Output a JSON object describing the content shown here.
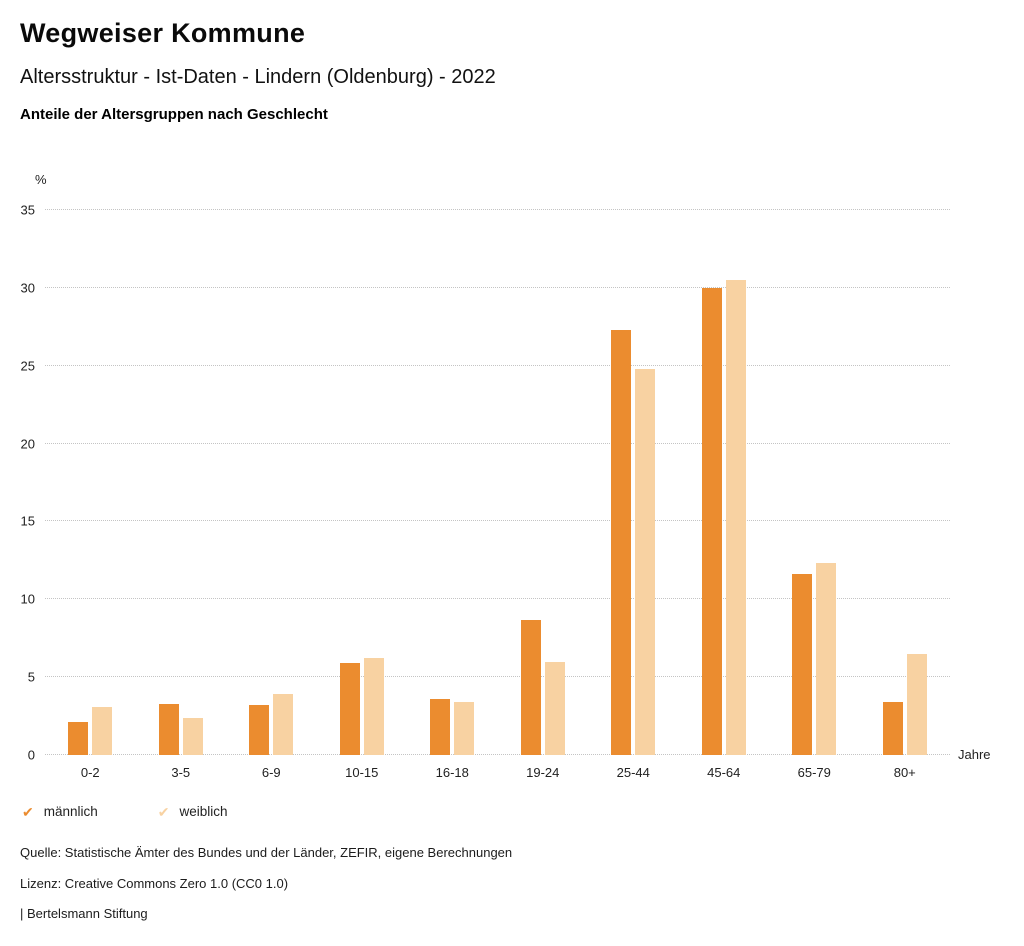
{
  "header": {
    "title": "Wegweiser Kommune",
    "subtitle": "Altersstruktur - Ist-Daten - Lindern (Oldenburg) - 2022",
    "chart_heading": "Anteile der Altersgruppen nach Geschlecht"
  },
  "chart_data": {
    "type": "bar",
    "title": "Anteile der Altersgruppen nach Geschlecht",
    "categories": [
      "0-2",
      "3-5",
      "6-9",
      "10-15",
      "16-18",
      "19-24",
      "25-44",
      "45-64",
      "65-79",
      "80+"
    ],
    "series": [
      {
        "name": "männlich",
        "color": "#EB8C2F",
        "values": [
          2.1,
          3.3,
          3.2,
          5.9,
          3.6,
          8.7,
          27.3,
          30.0,
          11.6,
          3.4
        ]
      },
      {
        "name": "weiblich",
        "color": "#F8D2A2",
        "values": [
          3.1,
          2.4,
          3.9,
          6.2,
          3.4,
          6.0,
          24.8,
          30.5,
          12.3,
          6.5
        ]
      }
    ],
    "unit_label": "%",
    "x_unit_label": "Jahre",
    "xlabel": "Jahre",
    "ylabel": "%",
    "ylim": [
      0,
      35
    ],
    "ytick_step": 5,
    "grid": "horizontal-dotted",
    "legend_position": "bottom-left",
    "legend_marker": "check-icon"
  },
  "footer": {
    "source": "Quelle: Statistische Ämter des Bundes und der Länder, ZEFIR, eigene Berechnungen",
    "license": "Lizenz: Creative Commons Zero 1.0 (CC0 1.0)",
    "attribution": "| Bertelsmann Stiftung"
  }
}
